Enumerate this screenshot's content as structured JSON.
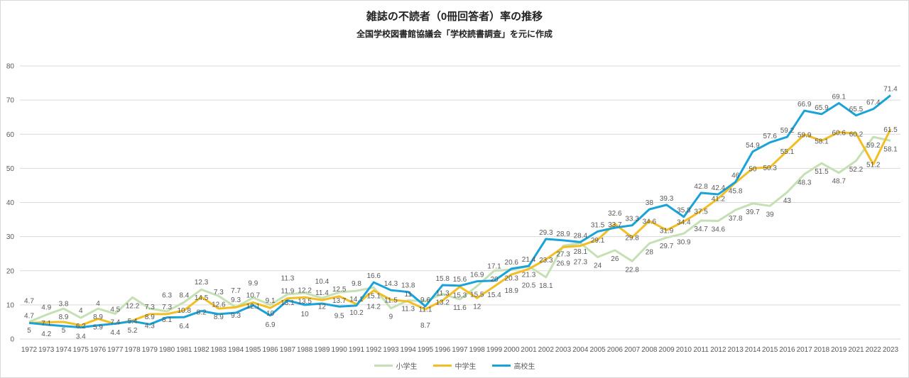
{
  "chart_data": {
    "type": "line",
    "title": "雑誌の不読者（0冊回答者）率の推移",
    "subtitle": "全国学校図書館協議会「学校読書調査」を元に作成",
    "xlabel": "",
    "ylabel": "",
    "ylim": [
      0,
      80
    ],
    "yticks": [
      "0",
      "10",
      "20",
      "30",
      "40",
      "50",
      "60",
      "70",
      "80"
    ],
    "grid": true,
    "legend_position": "bottom",
    "categories": [
      "1972",
      "1973",
      "1974",
      "1975",
      "1976",
      "1977",
      "1978",
      "1979",
      "1980",
      "1981",
      "1982",
      "1983",
      "1984",
      "1985",
      "1986",
      "1987",
      "1988",
      "1989",
      "1990",
      "1991",
      "1992",
      "1993",
      "1994",
      "1995",
      "1996",
      "1997",
      "1998",
      "1999",
      "2000",
      "2001",
      "2002",
      "2003",
      "2004",
      "2005",
      "2006",
      "2007",
      "2008",
      "2009",
      "2010",
      "2011",
      "2012",
      "2013",
      "2014",
      "2015",
      "2016",
      "2017",
      "2018",
      "2019",
      "2021",
      "2022",
      "2023"
    ],
    "series": [
      {
        "name": "小学生",
        "color": "#c5e0b4",
        "label_pos": "below",
        "values": [
          5,
          7.1,
          8.9,
          6.2,
          8.9,
          7.4,
          12.2,
          8.9,
          8.1,
          10.8,
          14.5,
          12.6,
          9.3,
          12.1,
          10,
          13.1,
          13.5,
          12,
          13.7,
          14.1,
          15.1,
          9,
          11.3,
          11.1,
          13.2,
          11.6,
          15.5,
          20,
          20.3,
          21.3,
          18.1,
          27.3,
          28.1,
          24,
          26,
          22.8,
          28,
          29.7,
          30.9,
          34.7,
          34.6,
          37.8,
          39.7,
          39,
          43,
          48.3,
          51.5,
          48.7,
          52.2,
          59.2,
          58.1
        ]
      },
      {
        "name": "中学生",
        "color": "#f2be22",
        "label_pos": "middle",
        "values": [
          4.7,
          4.9,
          5,
          4,
          5.9,
          4.4,
          5.4,
          7.3,
          7.3,
          8.4,
          12.3,
          8.9,
          9.3,
          10.7,
          9.1,
          11.9,
          12.2,
          11.4,
          12.5,
          10.2,
          14.2,
          11.5,
          11,
          8.7,
          11.3,
          15.3,
          12,
          15.4,
          18.9,
          20.5,
          23.3,
          26.9,
          27.3,
          29.1,
          33.7,
          29.8,
          34.6,
          31.9,
          34.4,
          37.5,
          41.2,
          45.8,
          50,
          50.3,
          55.1,
          59.9,
          58.1,
          60.6,
          60.2,
          51.2,
          61.5
        ]
      },
      {
        "name": "高校生",
        "color": "#1aa3d9",
        "label_pos": "above",
        "values": [
          4.7,
          4.2,
          3.8,
          3.4,
          4,
          4.5,
          5.2,
          4.3,
          6.3,
          6.4,
          8.2,
          7.3,
          7.7,
          9.9,
          6.9,
          11.3,
          10,
          10.4,
          9.5,
          9.8,
          16.6,
          14.3,
          13.8,
          9.6,
          15.8,
          15.6,
          16.9,
          17.1,
          20.6,
          21.4,
          29.3,
          28.9,
          28.4,
          31.5,
          32.6,
          33.3,
          38,
          39.3,
          35.8,
          42.8,
          42.4,
          46,
          54.9,
          57.6,
          59.2,
          66.9,
          65.9,
          69.1,
          65.5,
          67.4,
          71.4
        ]
      }
    ]
  }
}
